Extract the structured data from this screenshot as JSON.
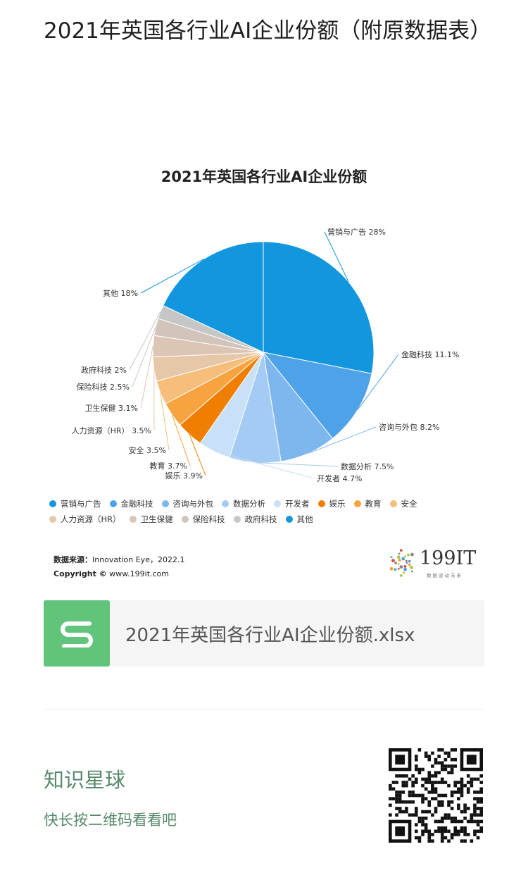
{
  "article": {
    "title": "2021年英国各行业AI企业份额（附原数据表）"
  },
  "chart_data": {
    "type": "pie",
    "title": "2021年英国各行业AI企业份额",
    "slices": [
      {
        "label": "营销与广告",
        "value": 28,
        "display": "营销与广告 28%",
        "color": "#1297de"
      },
      {
        "label": "金融科技",
        "value": 11.1,
        "display": "金融科技 11.1%",
        "color": "#4ea2e8"
      },
      {
        "label": "咨询与外包",
        "value": 8.2,
        "display": "咨询与外包 8.2%",
        "color": "#7eb6ee"
      },
      {
        "label": "数据分析",
        "value": 7.5,
        "display": "数据分析 7.5%",
        "color": "#a4cbf3"
      },
      {
        "label": "开发者",
        "value": 4.7,
        "display": "开发者 4.7%",
        "color": "#c8e0f8"
      },
      {
        "label": "娱乐",
        "value": 3.9,
        "display": "娱乐 3.9%",
        "color": "#f07e00"
      },
      {
        "label": "教育",
        "value": 3.7,
        "display": "教育 3.7%",
        "color": "#f7a33f"
      },
      {
        "label": "安全",
        "value": 3.5,
        "display": "安全 3.5%",
        "color": "#f7bd7b"
      },
      {
        "label": "人力资源（HR）",
        "value": 3.5,
        "display": "人力资源（HR） 3.5%",
        "color": "#e6c8a8"
      },
      {
        "label": "卫生保健",
        "value": 3.1,
        "display": "卫生保健 3.1%",
        "color": "#dcc5b5"
      },
      {
        "label": "保险科技",
        "value": 2.5,
        "display": "保险科技 2.5%",
        "color": "#d2c4bb"
      },
      {
        "label": "政府科技",
        "value": 2,
        "display": "政府科技 2%",
        "color": "#c6c6c6"
      },
      {
        "label": "其他",
        "value": 18,
        "display": "其他 18%",
        "color": "#1297de"
      }
    ],
    "legend_position": "bottom"
  },
  "source": {
    "label": "数据来源：",
    "text": "Innovation Eye，2022.1",
    "copyright_label": "Copyright ©",
    "copyright_text": "www.199it.com"
  },
  "brand": {
    "name": "199IT",
    "slogan": "数据驱动未来"
  },
  "attachment": {
    "file_name": "2021年英国各行业AI企业份额.xlsx",
    "icon": "spreadsheet-s-icon",
    "icon_color": "#62c37b"
  },
  "promo": {
    "title": "知识星球",
    "subtitle": "快长按二维码看看吧",
    "qr_icon": "qr-code-icon"
  }
}
